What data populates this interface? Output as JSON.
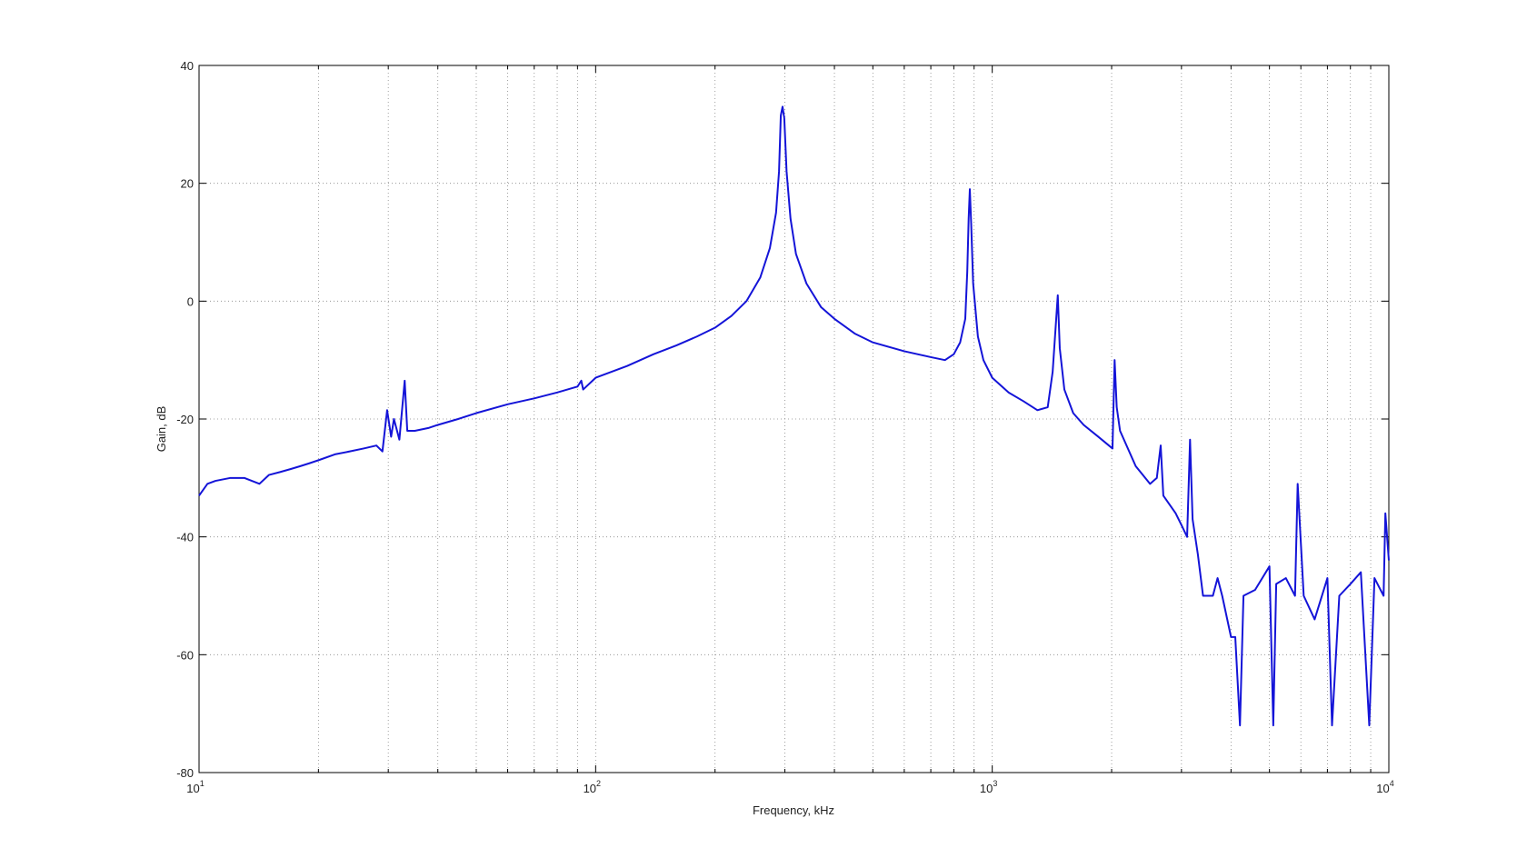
{
  "chart_data": {
    "type": "line",
    "xlabel": "Frequency, kHz",
    "ylabel": "Gain, dB",
    "xscale": "log",
    "grid": true,
    "xlim": [
      10,
      10000
    ],
    "ylim": [
      -80,
      40
    ],
    "xticks": [
      {
        "value": 10,
        "label": "10",
        "exponent": "1"
      },
      {
        "value": 100,
        "label": "10",
        "exponent": "2"
      },
      {
        "value": 1000,
        "label": "10",
        "exponent": "3"
      },
      {
        "value": 10000,
        "label": "10",
        "exponent": "4"
      }
    ],
    "xminorticks": [
      20,
      30,
      40,
      50,
      60,
      70,
      80,
      90,
      200,
      300,
      400,
      500,
      600,
      700,
      800,
      900,
      2000,
      3000,
      4000,
      5000,
      6000,
      7000,
      8000,
      9000
    ],
    "yticks": [
      -80,
      -60,
      -40,
      -20,
      0,
      20,
      40
    ],
    "series": [
      {
        "name": "Gain",
        "color": "#1414d8",
        "x": [
          10,
          10.5,
          11,
          12,
          13,
          14.2,
          15,
          16,
          17,
          18,
          19,
          20,
          22,
          24,
          26,
          28,
          29,
          29.8,
          30.5,
          31,
          32,
          33,
          33.5,
          35,
          38,
          40,
          45,
          50,
          60,
          70,
          80,
          90,
          92,
          93,
          100,
          120,
          140,
          160,
          180,
          200,
          220,
          240,
          260,
          275,
          285,
          290,
          293,
          296,
          299,
          303,
          310,
          320,
          340,
          370,
          400,
          450,
          500,
          600,
          700,
          760,
          800,
          830,
          855,
          865,
          872,
          878,
          885,
          895,
          920,
          950,
          1000,
          1100,
          1200,
          1300,
          1380,
          1420,
          1463,
          1480,
          1520,
          1600,
          1700,
          1850,
          2010,
          2035,
          2060,
          2100,
          2300,
          2500,
          2600,
          2659,
          2700,
          2900,
          3000,
          3100,
          3153,
          3200,
          3300,
          3400,
          3600,
          3700,
          3800,
          4000,
          4100,
          4213,
          4300,
          4600,
          5000,
          5112,
          5200,
          5500,
          5800,
          5890,
          6100,
          6500,
          7000,
          7190,
          7500,
          8000,
          8500,
          8925,
          9200,
          9700,
          9800,
          10000
        ],
        "values": [
          -33,
          -31,
          -30.5,
          -30,
          -30,
          -31,
          -29.5,
          -29,
          -28.5,
          -28,
          -27.5,
          -27,
          -26,
          -25.5,
          -25,
          -24.5,
          -25.5,
          -18.5,
          -23,
          -20,
          -23.5,
          -13.5,
          -22,
          -22,
          -21.5,
          -21,
          -20,
          -19,
          -17.5,
          -16.5,
          -15.5,
          -14.5,
          -13.5,
          -15,
          -13,
          -11,
          -9,
          -7.5,
          -6,
          -4.5,
          -2.5,
          0,
          4,
          9,
          15,
          22,
          31.5,
          33,
          31,
          22,
          14,
          8,
          3,
          -1,
          -3,
          -5.5,
          -7,
          -8.5,
          -9.5,
          -10,
          -9,
          -7,
          -3,
          5,
          14,
          19,
          13,
          3,
          -6,
          -10,
          -13,
          -15.5,
          -17,
          -18.5,
          -18,
          -12,
          1,
          -8,
          -15,
          -19,
          -21,
          -23,
          -25,
          -10,
          -18,
          -22,
          -28,
          -31,
          -30,
          -24.5,
          -33,
          -36,
          -38,
          -40,
          -23.5,
          -37,
          -43,
          -50,
          -50,
          -47,
          -50,
          -57,
          -57,
          -72,
          -50,
          -49,
          -45,
          -72,
          -48,
          -47,
          -50,
          -31,
          -50,
          -54,
          -47,
          -72,
          -50,
          -48,
          -46,
          -72,
          -47,
          -50,
          -36,
          -44
        ]
      }
    ]
  }
}
